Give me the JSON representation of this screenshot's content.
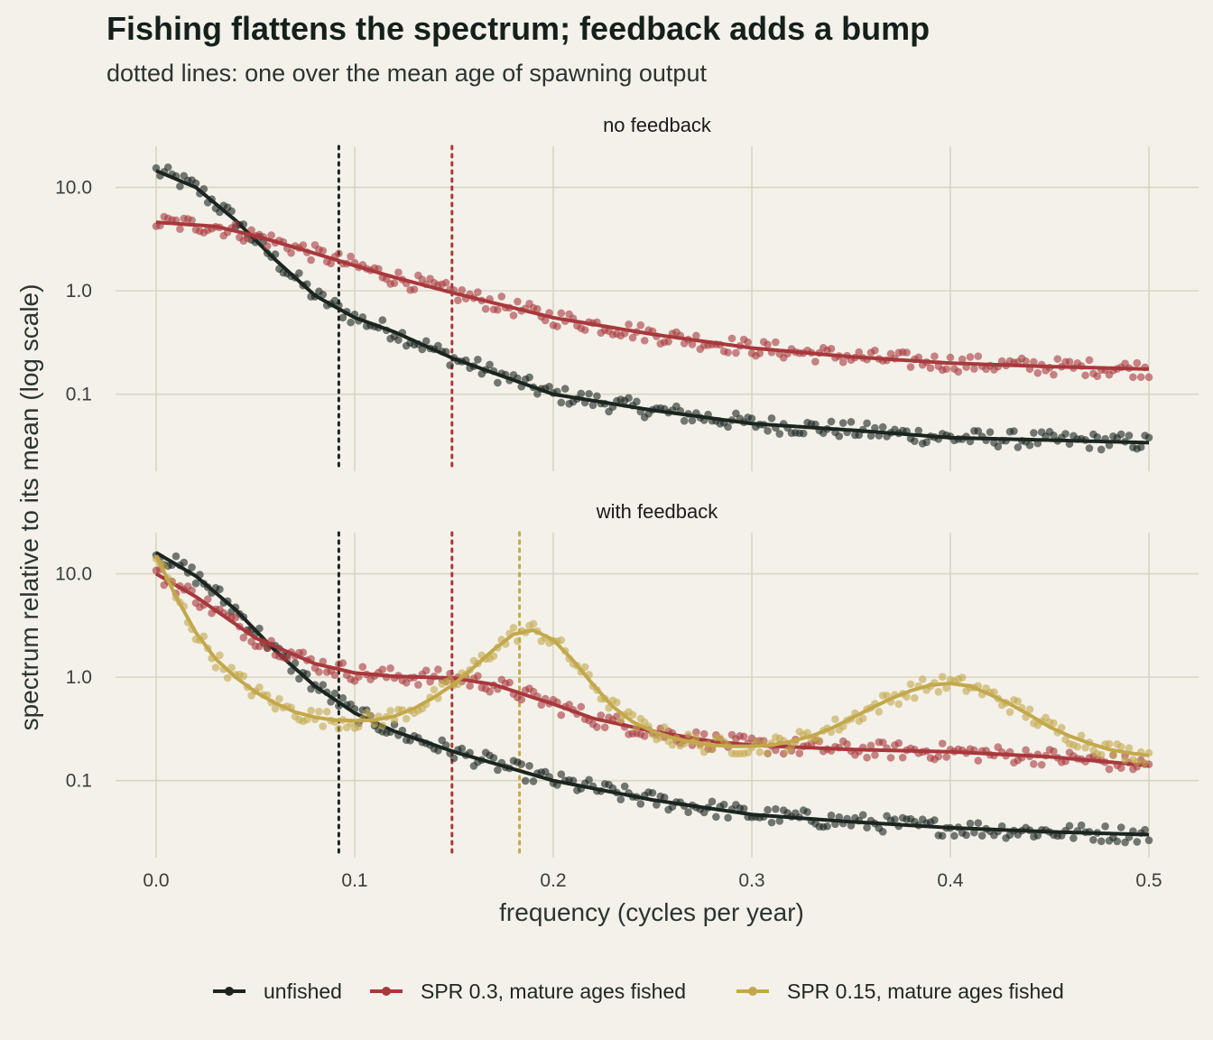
{
  "title": "Fishing flattens the spectrum; feedback adds a bump",
  "subtitle": "dotted lines: one over the mean age of spawning output",
  "colors": {
    "background": "#f3f1ea",
    "unfished": "#1b251f",
    "spr03": "#a8383c",
    "spr015": "#c3a84b",
    "grid": "#d8d6c2"
  },
  "legend": {
    "unfished": "unfished",
    "spr03": "SPR 0.3, mature ages fished",
    "spr015": "SPR 0.15, mature ages fished"
  },
  "chart_data": {
    "type": "line",
    "xlabel": "frequency (cycles per year)",
    "ylabel": "spectrum relative to its mean (log scale)",
    "xlim": [
      -0.02,
      0.525
    ],
    "x_ticks": [
      0.0,
      0.1,
      0.2,
      0.3,
      0.4,
      0.5
    ],
    "x_tick_labels": [
      "0.0",
      "0.1",
      "0.2",
      "0.3",
      "0.4",
      "0.5"
    ],
    "y_scale": "log10",
    "y_ticks": [
      0.1,
      1.0,
      10.0
    ],
    "y_tick_labels": [
      "0.1",
      "1.0",
      "10.0"
    ],
    "grid": true,
    "legend_position": "bottom",
    "panels": [
      {
        "label": "no feedback",
        "ylim": [
          0.018,
          25
        ],
        "vlines": [
          {
            "series": "unfished",
            "x": 0.092
          },
          {
            "series": "spr03",
            "x": 0.149
          }
        ],
        "series": [
          {
            "key": "unfished",
            "x": [
              0.0,
              0.02,
              0.04,
              0.06,
              0.08,
              0.1,
              0.12,
              0.15,
              0.2,
              0.25,
              0.3,
              0.35,
              0.4,
              0.45,
              0.5
            ],
            "y": [
              14.5,
              10,
              4.8,
              2.0,
              0.9,
              0.55,
              0.4,
              0.22,
              0.1,
              0.07,
              0.052,
              0.045,
              0.038,
              0.036,
              0.034
            ]
          },
          {
            "key": "spr03",
            "x": [
              0.0,
              0.03,
              0.05,
              0.08,
              0.1,
              0.12,
              0.15,
              0.2,
              0.25,
              0.3,
              0.35,
              0.4,
              0.45,
              0.5
            ],
            "y": [
              4.6,
              4.2,
              3.4,
              2.3,
              1.75,
              1.35,
              0.95,
              0.55,
              0.38,
              0.28,
              0.23,
              0.2,
              0.185,
              0.175
            ]
          }
        ]
      },
      {
        "label": "with feedback",
        "ylim": [
          0.018,
          25
        ],
        "vlines": [
          {
            "series": "unfished",
            "x": 0.092
          },
          {
            "series": "spr03",
            "x": 0.149
          },
          {
            "series": "spr015",
            "x": 0.183
          }
        ],
        "series": [
          {
            "key": "unfished",
            "x": [
              0.0,
              0.02,
              0.04,
              0.06,
              0.08,
              0.1,
              0.12,
              0.15,
              0.2,
              0.25,
              0.3,
              0.35,
              0.4,
              0.45,
              0.5
            ],
            "y": [
              16,
              9.5,
              4.5,
              1.8,
              0.82,
              0.45,
              0.3,
              0.19,
              0.1,
              0.065,
              0.047,
              0.04,
              0.035,
              0.032,
              0.03
            ]
          },
          {
            "key": "spr03",
            "x": [
              0.0,
              0.02,
              0.05,
              0.08,
              0.1,
              0.12,
              0.15,
              0.17,
              0.2,
              0.22,
              0.25,
              0.28,
              0.3,
              0.35,
              0.4,
              0.45,
              0.5
            ],
            "y": [
              10,
              6.0,
              2.4,
              1.35,
              1.1,
              1.02,
              0.98,
              0.85,
              0.55,
              0.4,
              0.3,
              0.24,
              0.22,
              0.2,
              0.19,
              0.17,
              0.14
            ]
          },
          {
            "key": "spr015",
            "x": [
              0.0,
              0.01,
              0.02,
              0.03,
              0.04,
              0.05,
              0.06,
              0.07,
              0.08,
              0.09,
              0.1,
              0.11,
              0.12,
              0.13,
              0.14,
              0.15,
              0.16,
              0.17,
              0.18,
              0.19,
              0.2,
              0.21,
              0.22,
              0.23,
              0.24,
              0.25,
              0.26,
              0.27,
              0.28,
              0.29,
              0.3,
              0.31,
              0.32,
              0.33,
              0.34,
              0.35,
              0.36,
              0.37,
              0.38,
              0.39,
              0.4,
              0.41,
              0.42,
              0.43,
              0.44,
              0.45,
              0.46,
              0.47,
              0.48,
              0.49,
              0.5
            ],
            "y": [
              15,
              6.0,
              2.7,
              1.5,
              1.0,
              0.72,
              0.56,
              0.46,
              0.41,
              0.385,
              0.38,
              0.385,
              0.42,
              0.5,
              0.64,
              0.86,
              1.25,
              1.85,
              2.6,
              2.85,
              2.3,
              1.45,
              0.85,
              0.52,
              0.37,
              0.3,
              0.26,
              0.235,
              0.22,
              0.215,
              0.215,
              0.22,
              0.24,
              0.27,
              0.32,
              0.4,
              0.5,
              0.62,
              0.74,
              0.84,
              0.87,
              0.82,
              0.68,
              0.55,
              0.43,
              0.33,
              0.27,
              0.23,
              0.2,
              0.185,
              0.175
            ]
          }
        ]
      }
    ]
  }
}
